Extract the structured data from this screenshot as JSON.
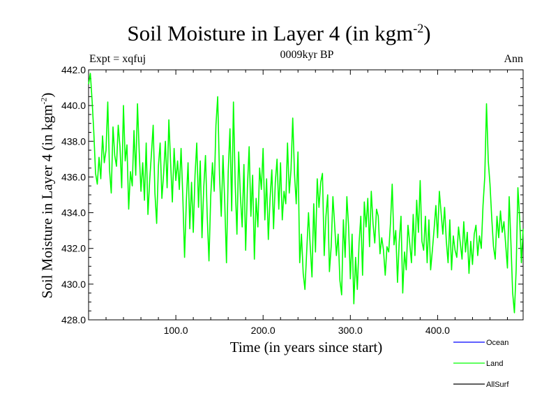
{
  "chart_data": {
    "type": "line",
    "title": "Soil Moisture in Layer 4 (in kgm",
    "title_sup": "-2",
    "title_close": ")",
    "expt_label": "Expt = xqfuj",
    "subtitle": "0009kyr BP",
    "season": "Ann",
    "xlabel": "Time (in years since start)",
    "ylabel": "Soil Moisture in Layer 4 (in kgm",
    "ylabel_sup": "-2",
    "ylabel_close": ")",
    "xlim": [
      0,
      498
    ],
    "ylim": [
      428.0,
      442.0
    ],
    "x_ticks": [
      100,
      200,
      300,
      400
    ],
    "x_tick_labels": [
      "100.0",
      "200.0",
      "300.0",
      "400.0"
    ],
    "y_ticks": [
      428,
      430,
      432,
      434,
      436,
      438,
      440,
      442
    ],
    "y_tick_labels": [
      "428.0",
      "430.0",
      "432.0",
      "434.0",
      "436.0",
      "438.0",
      "440.0",
      "442.0"
    ],
    "legend": [
      {
        "name": "Ocean",
        "color": "#0000ff"
      },
      {
        "name": "Land",
        "color": "#00ff00"
      },
      {
        "name": "AllSurf",
        "color": "#000000"
      }
    ],
    "series": [
      {
        "name": "Land",
        "color": "#00ff00",
        "x": [
          0,
          2,
          4,
          6,
          8,
          10,
          12,
          14,
          16,
          18,
          20,
          22,
          24,
          26,
          28,
          30,
          32,
          34,
          36,
          38,
          40,
          42,
          44,
          46,
          48,
          50,
          52,
          54,
          56,
          58,
          60,
          62,
          64,
          66,
          68,
          70,
          72,
          74,
          76,
          78,
          80,
          82,
          84,
          86,
          88,
          90,
          92,
          94,
          96,
          98,
          100,
          102,
          104,
          106,
          108,
          110,
          112,
          114,
          116,
          118,
          120,
          122,
          124,
          126,
          128,
          130,
          132,
          134,
          136,
          138,
          140,
          142,
          144,
          146,
          148,
          150,
          152,
          154,
          156,
          158,
          160,
          162,
          164,
          166,
          168,
          170,
          172,
          174,
          176,
          178,
          180,
          182,
          184,
          186,
          188,
          190,
          192,
          194,
          196,
          198,
          200,
          202,
          204,
          206,
          208,
          210,
          212,
          214,
          216,
          218,
          220,
          222,
          224,
          226,
          228,
          230,
          232,
          234,
          236,
          238,
          240,
          242,
          244,
          246,
          248,
          250,
          252,
          254,
          256,
          258,
          260,
          262,
          264,
          266,
          268,
          270,
          272,
          274,
          276,
          278,
          280,
          282,
          284,
          286,
          288,
          290,
          292,
          294,
          296,
          298,
          300,
          302,
          304,
          306,
          308,
          310,
          312,
          314,
          316,
          318,
          320,
          322,
          324,
          326,
          328,
          330,
          332,
          334,
          336,
          338,
          340,
          342,
          344,
          346,
          348,
          350,
          352,
          354,
          356,
          358,
          360,
          362,
          364,
          366,
          368,
          370,
          372,
          374,
          376,
          378,
          380,
          382,
          384,
          386,
          388,
          390,
          392,
          394,
          396,
          398,
          400,
          402,
          404,
          406,
          408,
          410,
          412,
          414,
          416,
          418,
          420,
          422,
          424,
          426,
          428,
          430,
          432,
          434,
          436,
          438,
          440,
          442,
          444,
          446,
          448,
          450,
          452,
          454,
          456,
          458,
          460,
          462,
          464,
          466,
          468,
          470,
          472,
          474,
          476,
          478,
          480,
          482,
          484,
          486,
          488,
          490,
          492,
          494,
          496,
          498
        ],
        "values": [
          441.2,
          441.8,
          440.3,
          438.5,
          436.2,
          435.6,
          437.1,
          435.9,
          438.3,
          436.8,
          437.5,
          440.2,
          436.4,
          435.1,
          438.8,
          437.2,
          436.6,
          438.9,
          437.7,
          435.4,
          440.0,
          436.9,
          437.8,
          434.2,
          436.3,
          435.5,
          438.6,
          436.1,
          440.1,
          437.4,
          435.2,
          436.8,
          434.7,
          437.9,
          433.9,
          435.8,
          437.3,
          438.9,
          435.1,
          433.4,
          436.6,
          437.9,
          434.8,
          436.2,
          438.0,
          435.4,
          439.2,
          436.8,
          434.6,
          437.6,
          435.8,
          436.9,
          435.3,
          437.6,
          434.9,
          431.5,
          434.6,
          436.8,
          433.1,
          435.7,
          432.9,
          436.1,
          437.9,
          434.3,
          436.9,
          432.6,
          435.4,
          437.2,
          433.8,
          431.3,
          434.9,
          436.8,
          435.2,
          438.9,
          440.5,
          436.1,
          433.8,
          437.2,
          434.6,
          431.2,
          436.3,
          438.7,
          434.1,
          440.2,
          435.6,
          432.8,
          437.4,
          434.9,
          433.2,
          436.7,
          431.9,
          435.4,
          437.7,
          433.8,
          436.1,
          431.4,
          434.8,
          433.2,
          436.5,
          435.3,
          437.6,
          433.6,
          435.9,
          432.5,
          434.8,
          436.4,
          433.1,
          435.7,
          437.0,
          434.2,
          436.8,
          433.6,
          435.2,
          434.5,
          437.9,
          435.1,
          436.4,
          439.3,
          436.2,
          434.5,
          437.4,
          431.2,
          432.8,
          430.6,
          429.7,
          431.9,
          434.0,
          432.1,
          430.4,
          434.5,
          431.8,
          435.9,
          434.3,
          435.7,
          436.2,
          431.6,
          433.8,
          435.0,
          430.7,
          432.1,
          434.9,
          433.3,
          431.6,
          432.8,
          430.2,
          429.4,
          433.6,
          431.5,
          434.9,
          433.2,
          430.3,
          432.8,
          428.9,
          431.5,
          429.7,
          432.3,
          433.8,
          430.5,
          434.6,
          433.2,
          434.8,
          432.1,
          435.2,
          433.4,
          432.3,
          434.2,
          433.8,
          431.7,
          432.6,
          431.9,
          430.5,
          432.1,
          431.8,
          433.4,
          435.6,
          432.2,
          433.0,
          430.1,
          432.4,
          433.8,
          429.5,
          431.8,
          430.8,
          433.3,
          432.3,
          431.2,
          433.9,
          431.6,
          434.7,
          432.9,
          435.8,
          432.4,
          431.9,
          433.8,
          431.2,
          433.6,
          430.8,
          431.9,
          433.1,
          434.4,
          432.6,
          435.2,
          434.0,
          432.8,
          434.3,
          432.4,
          431.2,
          433.6,
          430.8,
          432.7,
          431.9,
          431.5,
          433.2,
          432.3,
          431.4,
          433.5,
          431.8,
          432.9,
          430.6,
          432.4,
          431.1,
          432.8,
          433.3,
          431.6,
          432.7,
          432.0,
          434.4,
          436.0,
          440.1,
          436.9,
          435.6,
          433.7,
          432.1,
          431.4,
          433.8,
          432.6,
          434.1,
          432.9,
          433.5,
          432.2,
          430.9,
          434.9,
          432.3,
          429.5,
          428.4,
          430.8,
          435.4,
          433.7,
          431.2,
          433.1
        ]
      }
    ]
  }
}
